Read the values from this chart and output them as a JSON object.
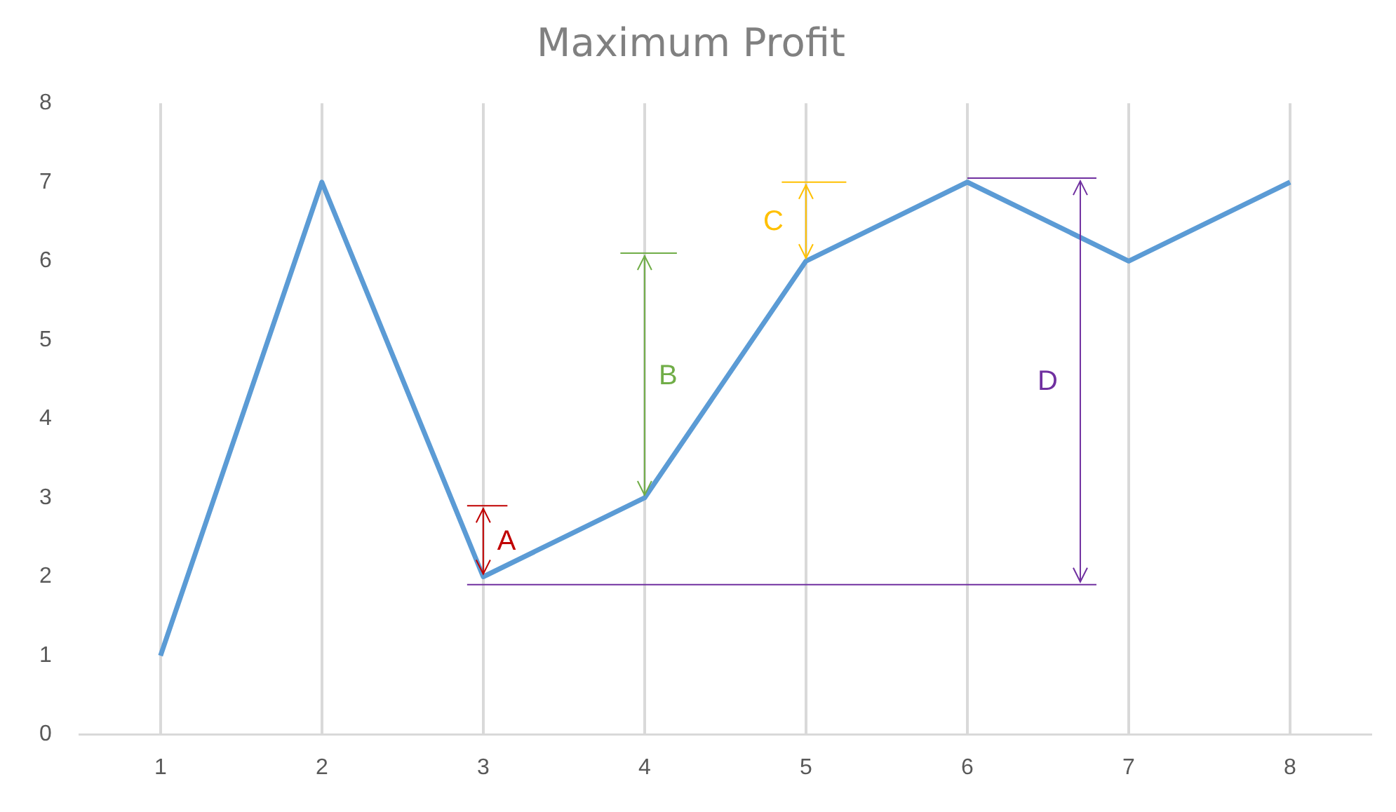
{
  "chart_data": {
    "type": "line",
    "title": "Maximum Profit",
    "x": [
      1,
      2,
      3,
      4,
      5,
      6,
      7,
      8
    ],
    "series": [
      {
        "color": "#5b9bd5",
        "values": [
          1,
          7,
          2,
          3,
          6,
          7,
          6,
          7
        ]
      }
    ],
    "xlim": [
      0.5,
      8.5
    ],
    "xticks": [
      1,
      2,
      3,
      4,
      5,
      6,
      7,
      8
    ],
    "ylim": [
      0,
      8
    ],
    "yticks": [
      0,
      1,
      2,
      3,
      4,
      5,
      6,
      7,
      8
    ],
    "grid": "x",
    "legend": false,
    "marker": "none",
    "line_style": "solid",
    "ref_lines": [
      {
        "axis": "y",
        "value": 1.9,
        "color": "#7030a0"
      },
      {
        "axis": "x",
        "value": 6.7,
        "color": "#7030a0"
      }
    ],
    "annotations": [
      "A",
      "B",
      "C",
      "D"
    ]
  }
}
